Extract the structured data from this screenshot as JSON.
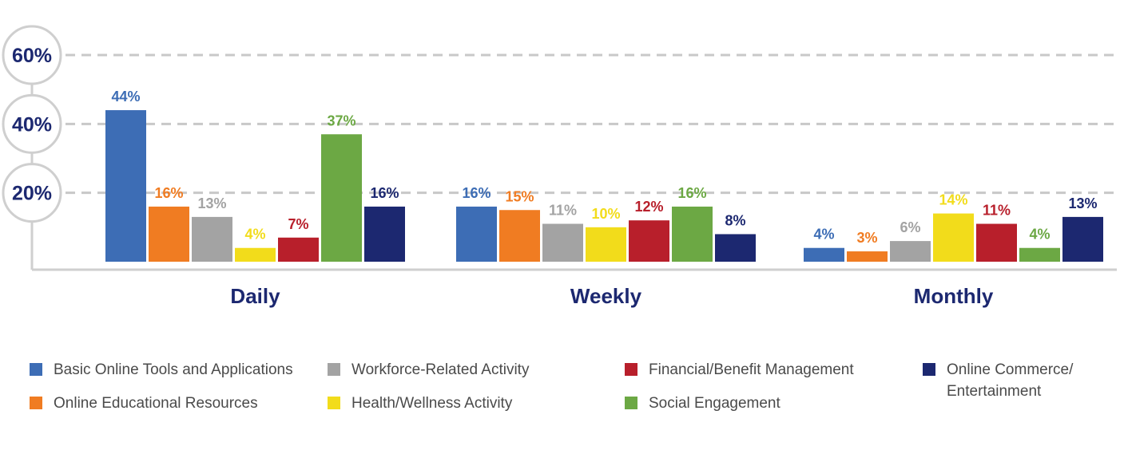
{
  "chart_data": {
    "type": "bar",
    "categories": [
      "Daily",
      "Weekly",
      "Monthly"
    ],
    "series": [
      {
        "name": "Basic Online Tools and Applications",
        "color": "#3d6db5",
        "values": [
          44,
          16,
          4
        ],
        "labels": [
          "44%",
          "16%",
          "4%"
        ]
      },
      {
        "name": "Online Educational Resources",
        "color": "#f07c22",
        "values": [
          16,
          15,
          3
        ],
        "labels": [
          "16%",
          "15%",
          "3%"
        ]
      },
      {
        "name": "Workforce-Related Activity",
        "color": "#a3a3a3",
        "values": [
          13,
          11,
          6
        ],
        "labels": [
          "13%",
          "11%",
          "6%"
        ]
      },
      {
        "name": "Health/Wellness Activity",
        "color": "#f2dc1b",
        "values": [
          4,
          10,
          14
        ],
        "labels": [
          "4%",
          "10%",
          "14%"
        ]
      },
      {
        "name": "Financial/Benefit Management",
        "color": "#b81f2b",
        "values": [
          7,
          12,
          11
        ],
        "labels": [
          "7%",
          "12%",
          "11%"
        ]
      },
      {
        "name": "Social Engagement",
        "color": "#6ca844",
        "values": [
          37,
          16,
          4
        ],
        "labels": [
          "37%",
          "16%",
          "4%"
        ]
      },
      {
        "name": "Online Commerce/\nEntertainment",
        "color": "#1c2870",
        "values": [
          16,
          8,
          13
        ],
        "labels": [
          "16%",
          "8%",
          "13%"
        ]
      }
    ],
    "y_ticks": [
      "20%",
      "40%",
      "60%"
    ],
    "y_tick_values": [
      20,
      40,
      60
    ],
    "ylim": [
      0,
      60
    ],
    "grid": true,
    "legend_position": "bottom",
    "colors": {
      "axis_text": "#1c2870",
      "axis_line": "#cfcfcf",
      "grid": "#c8c8c8"
    }
  }
}
